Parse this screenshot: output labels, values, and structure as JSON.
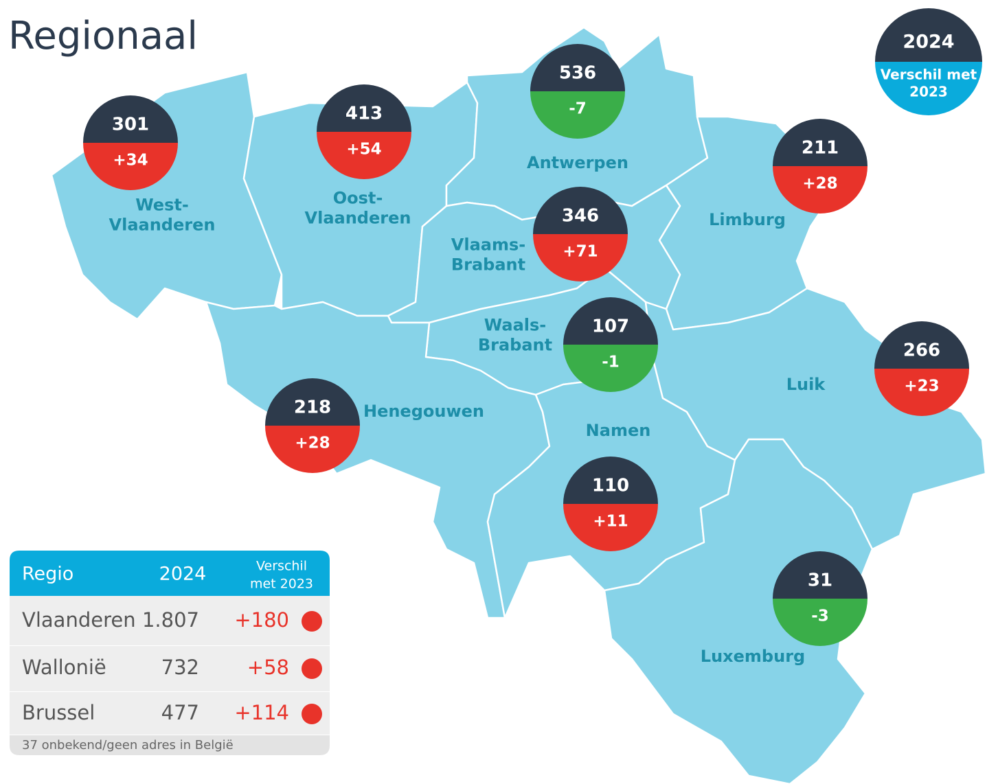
{
  "title": "Regionaal",
  "legend": {
    "year": "2024",
    "diff_lines": [
      "Verschil met",
      "2023"
    ],
    "color": "#0aabdc"
  },
  "regions": [
    {
      "label_lines": [
        "West-",
        "Vlaanderen"
      ],
      "value": "301",
      "diff": "+34",
      "color": "#e8332a"
    },
    {
      "label_lines": [
        "Oost-",
        "Vlaanderen"
      ],
      "value": "413",
      "diff": "+54",
      "color": "#e8332a"
    },
    {
      "label_lines": [
        "Antwerpen"
      ],
      "value": "536",
      "diff": "-7",
      "color": "#3aae49"
    },
    {
      "label_lines": [
        "Vlaams-",
        "Brabant"
      ],
      "value": "346",
      "diff": "+71",
      "color": "#e8332a"
    },
    {
      "label_lines": [
        "Waals-",
        "Brabant"
      ],
      "value": "107",
      "diff": "-1",
      "color": "#3aae49"
    },
    {
      "label_lines": [
        "Henegouwen"
      ],
      "value": "218",
      "diff": "+28",
      "color": "#e8332a"
    },
    {
      "label_lines": [
        "Namen"
      ],
      "value": "110",
      "diff": "+11",
      "color": "#e8332a"
    },
    {
      "label_lines": [
        "Luik"
      ],
      "value": "266",
      "diff": "+23",
      "color": "#e8332a"
    },
    {
      "label_lines": [
        "Limburg"
      ],
      "value": "211",
      "diff": "+28",
      "color": "#e8332a"
    },
    {
      "label_lines": [
        "Luxemburg"
      ],
      "value": "31",
      "diff": "-3",
      "color": "#3aae49"
    }
  ],
  "table": {
    "header": [
      "Regio",
      "2024",
      [
        "Verschil",
        "met 2023"
      ]
    ],
    "rows": [
      {
        "name": "Vlaanderen",
        "value": "1.807",
        "diff": "+180",
        "color": "#e8332a"
      },
      {
        "name": "Wallonië",
        "value": "732",
        "diff": "+58",
        "color": "#e8332a"
      },
      {
        "name": "Brussel",
        "value": "477",
        "diff": "+114",
        "color": "#e8332a"
      }
    ],
    "footnote": "37 onbekend/geen adres in België"
  }
}
